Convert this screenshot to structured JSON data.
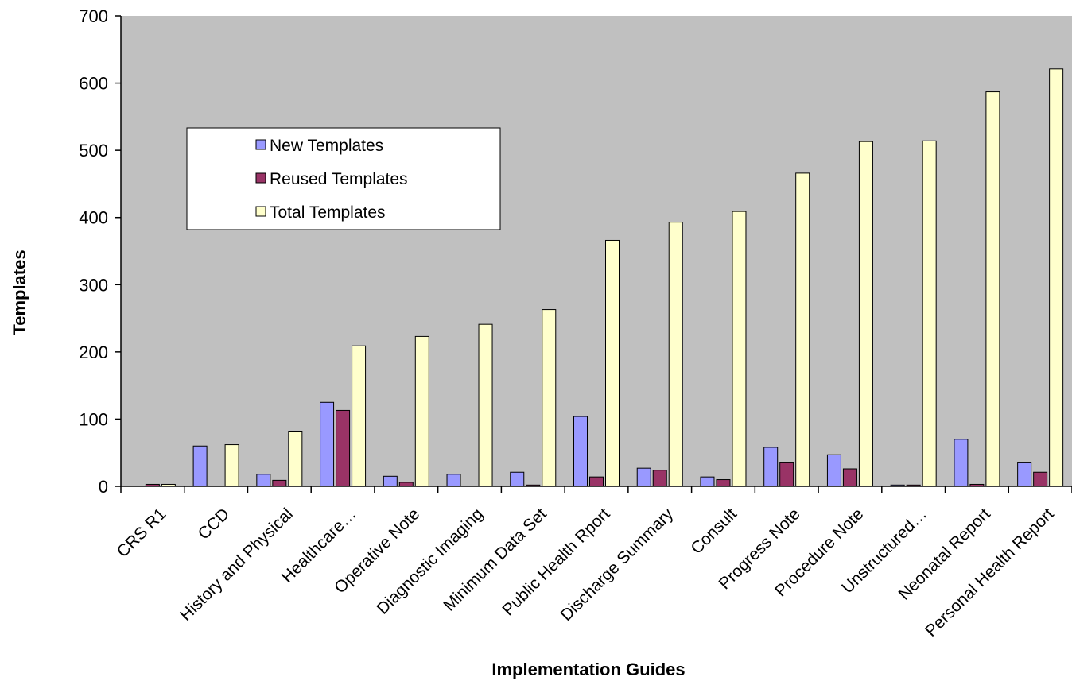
{
  "chart_data": {
    "type": "bar",
    "title": "",
    "xlabel": "Implementation Guides",
    "ylabel": "Templates",
    "ylim": [
      0,
      700
    ],
    "yticks": [
      0,
      100,
      200,
      300,
      400,
      500,
      600,
      700
    ],
    "grid": false,
    "legend_position": "top-left",
    "plot_background": "#C0C0C0",
    "categories": [
      "CRS R1",
      "CCD",
      "History and Physical",
      "Healthcare…",
      "Operative Note",
      "Diagnostic Imaging",
      "Minimum Data Set",
      "Public Health Rport",
      "Discharge Summary",
      "Consult",
      "Progress Note",
      "Procedure Note",
      "Unstructured…",
      "Neonatal Report",
      "Personal Health Report"
    ],
    "series": [
      {
        "name": "New Templates",
        "color": "#9999FF",
        "values": [
          0,
          60,
          18,
          125,
          15,
          18,
          21,
          104,
          27,
          14,
          58,
          47,
          2,
          70,
          35
        ]
      },
      {
        "name": "Reused Templates",
        "color": "#993366",
        "values": [
          3,
          0,
          9,
          113,
          6,
          0,
          2,
          14,
          24,
          10,
          35,
          26,
          2,
          3,
          21
        ]
      },
      {
        "name": "Total Templates",
        "color": "#FFFFCC",
        "values": [
          3,
          62,
          81,
          209,
          223,
          241,
          263,
          366,
          393,
          409,
          466,
          513,
          514,
          587,
          621
        ]
      }
    ]
  }
}
